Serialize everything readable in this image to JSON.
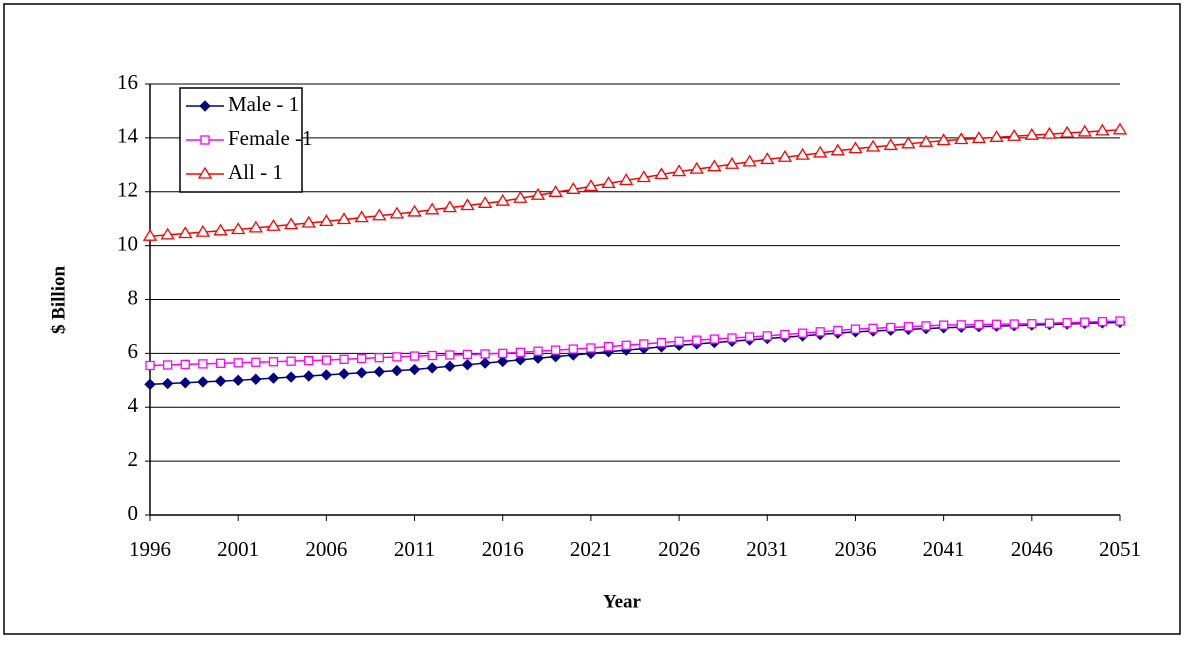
{
  "chart_data": {
    "type": "line",
    "x_label": "Year",
    "y_label": "$ Billion",
    "x": [
      1996,
      1997,
      1998,
      1999,
      2000,
      2001,
      2002,
      2003,
      2004,
      2005,
      2006,
      2007,
      2008,
      2009,
      2010,
      2011,
      2012,
      2013,
      2014,
      2015,
      2016,
      2017,
      2018,
      2019,
      2020,
      2021,
      2022,
      2023,
      2024,
      2025,
      2026,
      2027,
      2028,
      2029,
      2030,
      2031,
      2032,
      2033,
      2034,
      2035,
      2036,
      2037,
      2038,
      2039,
      2040,
      2041,
      2042,
      2043,
      2044,
      2045,
      2046,
      2047,
      2048,
      2049,
      2050,
      2051
    ],
    "series": [
      {
        "name": "Male - 1",
        "color": "#000080",
        "marker": "diamond",
        "values": [
          4.85,
          4.88,
          4.91,
          4.94,
          4.97,
          5.0,
          5.04,
          5.08,
          5.12,
          5.16,
          5.2,
          5.24,
          5.28,
          5.32,
          5.36,
          5.4,
          5.46,
          5.52,
          5.58,
          5.64,
          5.7,
          5.76,
          5.82,
          5.88,
          5.94,
          6.0,
          6.06,
          6.12,
          6.18,
          6.24,
          6.3,
          6.35,
          6.4,
          6.45,
          6.5,
          6.55,
          6.6,
          6.65,
          6.7,
          6.75,
          6.8,
          6.83,
          6.86,
          6.89,
          6.92,
          6.95,
          6.97,
          6.99,
          7.01,
          7.03,
          7.05,
          7.07,
          7.09,
          7.11,
          7.13,
          7.15
        ]
      },
      {
        "name": "Female -1",
        "color": "#ff00ff",
        "marker": "square",
        "values": [
          5.55,
          5.57,
          5.59,
          5.61,
          5.63,
          5.65,
          5.67,
          5.69,
          5.71,
          5.73,
          5.75,
          5.78,
          5.81,
          5.84,
          5.87,
          5.9,
          5.92,
          5.94,
          5.96,
          5.98,
          6.0,
          6.04,
          6.08,
          6.12,
          6.16,
          6.2,
          6.25,
          6.3,
          6.35,
          6.4,
          6.45,
          6.49,
          6.53,
          6.57,
          6.61,
          6.65,
          6.7,
          6.75,
          6.8,
          6.85,
          6.9,
          6.93,
          6.96,
          6.99,
          7.02,
          7.05,
          7.06,
          7.07,
          7.08,
          7.09,
          7.1,
          7.12,
          7.14,
          7.16,
          7.18,
          7.2
        ]
      },
      {
        "name": "All - 1",
        "color": "#ff0000",
        "marker": "triangle",
        "values": [
          10.35,
          10.4,
          10.45,
          10.5,
          10.55,
          10.6,
          10.66,
          10.72,
          10.78,
          10.84,
          10.9,
          10.97,
          11.04,
          11.11,
          11.18,
          11.25,
          11.33,
          11.41,
          11.49,
          11.57,
          11.65,
          11.76,
          11.87,
          11.98,
          12.09,
          12.2,
          12.31,
          12.42,
          12.53,
          12.64,
          12.75,
          12.84,
          12.93,
          13.02,
          13.11,
          13.2,
          13.28,
          13.36,
          13.44,
          13.52,
          13.6,
          13.66,
          13.72,
          13.78,
          13.84,
          13.9,
          13.94,
          13.98,
          14.02,
          14.06,
          14.1,
          14.14,
          14.18,
          14.22,
          14.26,
          14.3
        ]
      }
    ],
    "xlim": [
      1996,
      2051
    ],
    "xticks": [
      1996,
      2001,
      2006,
      2011,
      2016,
      2021,
      2026,
      2031,
      2036,
      2041,
      2046,
      2051
    ],
    "ylim": [
      0,
      16
    ],
    "yticks": [
      0,
      2,
      4,
      6,
      8,
      10,
      12,
      14,
      16
    ],
    "grid": true,
    "legend": "top-left"
  }
}
